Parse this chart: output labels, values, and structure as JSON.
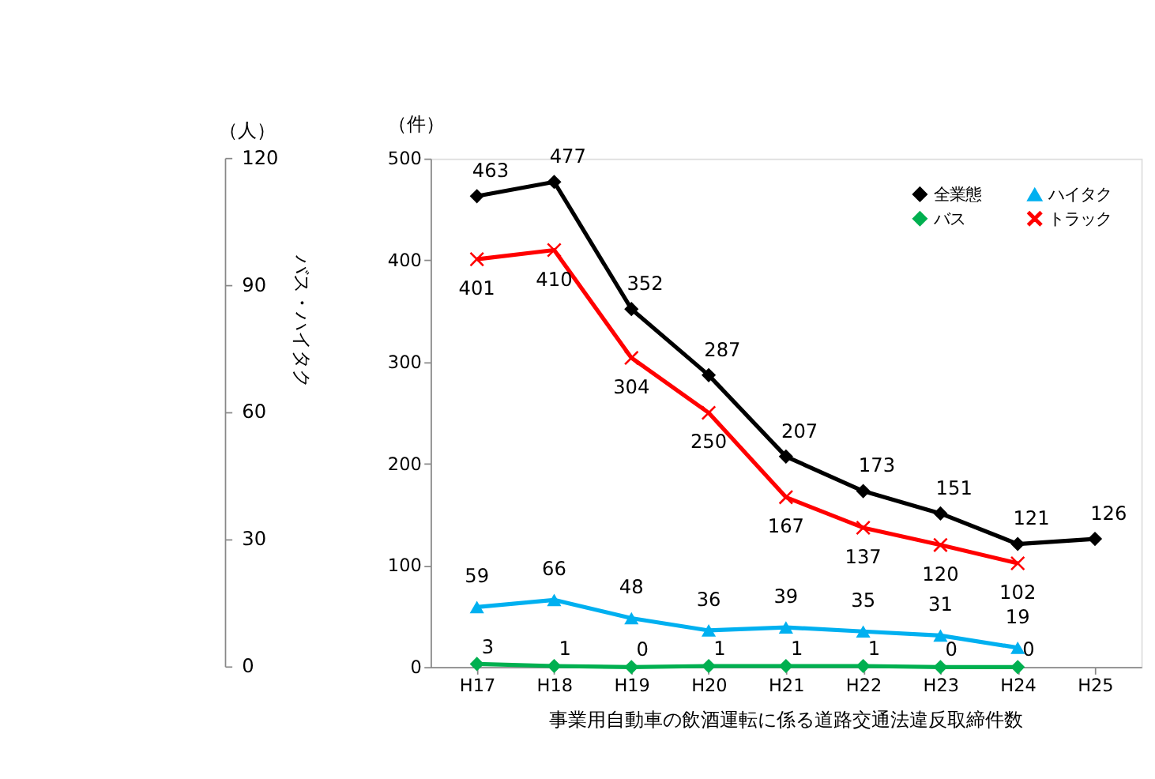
{
  "chart_data": {
    "type": "line",
    "title": "事業用自動車の飲酒運転に係る道路交通法違反取締件数",
    "ylabel": "（件）",
    "annotations": [
      "（人）",
      "バス・ハイタク",
      "0",
      "30",
      "60",
      "90",
      "120"
    ],
    "categories": [
      "H17",
      "H18",
      "H19",
      "H20",
      "H21",
      "H22",
      "H23",
      "H24",
      "H25"
    ],
    "series": [
      {
        "name": "全業態",
        "color": "#000000",
        "marker": "diamond",
        "values": [
          463,
          477,
          352,
          287,
          207,
          173,
          151,
          121,
          126
        ]
      },
      {
        "name": "バス",
        "color": "#00b050",
        "marker": "diamond",
        "values": [
          3,
          1,
          0,
          1,
          1,
          1,
          0,
          0,
          null
        ]
      },
      {
        "name": "ハイタク",
        "color": "#00b0f0",
        "marker": "triangle",
        "values": [
          59,
          66,
          48,
          36,
          39,
          35,
          31,
          19,
          null
        ]
      },
      {
        "name": "トラック",
        "color": "#ff0000",
        "marker": "cross",
        "values": [
          401,
          410,
          304,
          250,
          167,
          137,
          120,
          102,
          null
        ]
      }
    ],
    "ylim": [
      0,
      500
    ],
    "yticks": [
      0,
      100,
      200,
      300,
      400,
      500
    ],
    "data_labels": true,
    "grid": false,
    "legend": "top right",
    "line_style": "solid"
  }
}
